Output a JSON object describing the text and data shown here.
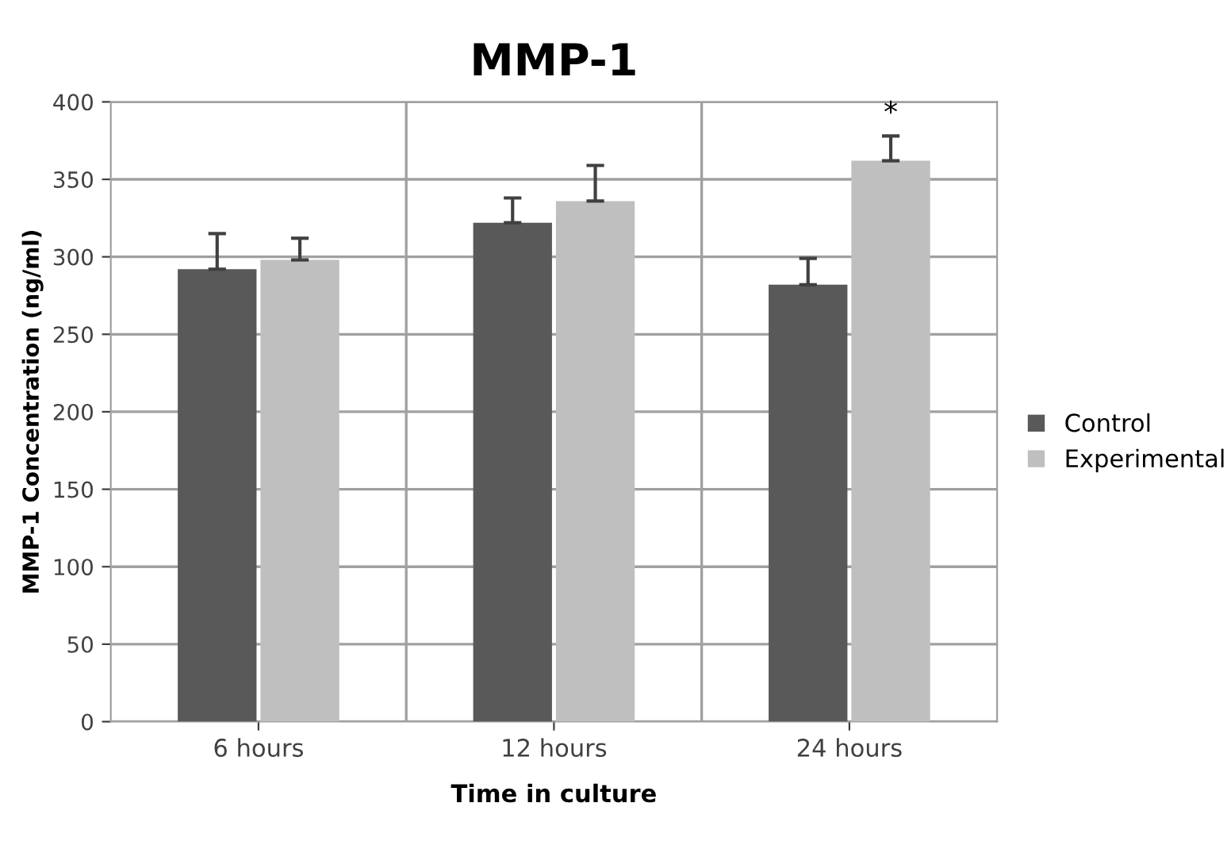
{
  "chart_data": {
    "type": "bar",
    "title": "MMP-1",
    "xlabel": "Time in culture",
    "ylabel": "MMP-1 Concentration (ng/ml)",
    "categories": [
      "6 hours",
      "12 hours",
      "24 hours"
    ],
    "series": [
      {
        "name": "Control",
        "color": "#595959",
        "values": [
          292,
          322,
          282
        ],
        "errors": [
          [
            292,
            315
          ],
          [
            322,
            338
          ],
          [
            282,
            299
          ]
        ]
      },
      {
        "name": "Experimental",
        "color": "#bfbfbf",
        "values": [
          298,
          336,
          362
        ],
        "errors": [
          [
            298,
            312
          ],
          [
            336,
            359
          ],
          [
            362,
            378
          ]
        ]
      }
    ],
    "annotations": [
      "*"
    ],
    "ylim": [
      0,
      400
    ],
    "yticks": [
      0,
      50,
      100,
      150,
      200,
      250,
      300,
      350,
      400
    ],
    "grid": true,
    "legend": "right"
  }
}
